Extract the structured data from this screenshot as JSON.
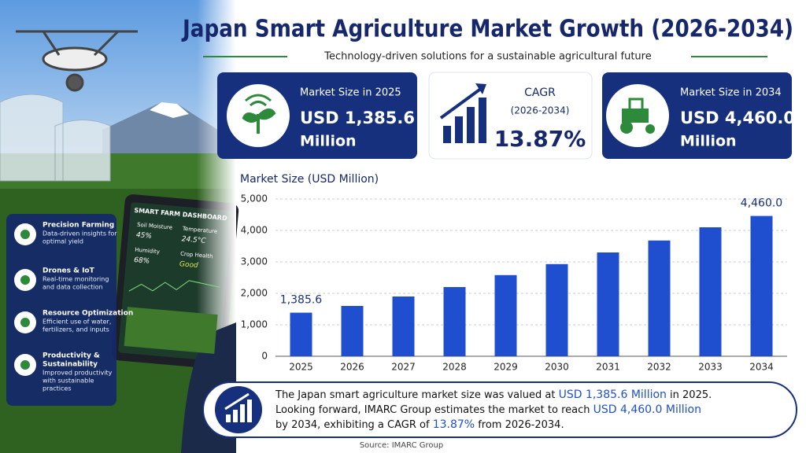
{
  "header": {
    "title": "Japan Smart Agriculture Market Growth (2026-2034)",
    "subtitle": "Technology-driven solutions for a sustainable agricultural future"
  },
  "cards": [
    {
      "label": "Market Size in 2025",
      "value": "USD 1,385.6",
      "unit": "Million"
    },
    {
      "label": "CAGR",
      "period": "(2026-2034)",
      "value": "13.87%"
    },
    {
      "label": "Market Size in 2034",
      "value": "USD 4,460.0",
      "unit": "Million"
    }
  ],
  "tablet": {
    "title": "SMART FARM DASHBOARD",
    "metrics": [
      {
        "label": "Soil Moisture",
        "value": "45%"
      },
      {
        "label": "Temperature",
        "value": "24.5°C"
      },
      {
        "label": "Humidity",
        "value": "68%"
      },
      {
        "label": "Crop Health",
        "value": "Good"
      }
    ]
  },
  "features": [
    {
      "title": [
        "Precision Farming"
      ],
      "desc": [
        "Data-driven insights for",
        "optimal yield"
      ]
    },
    {
      "title": [
        "Drones & IoT"
      ],
      "desc": [
        "Real-time monitoring",
        "and data collection"
      ]
    },
    {
      "title": [
        "Resource Optimization"
      ],
      "desc": [
        "Efficient use of water,",
        "fertilizers, and inputs"
      ]
    },
    {
      "title": [
        "Productivity &",
        "Sustainability"
      ],
      "desc": [
        "Improved productivity",
        "with sustainable",
        "practices"
      ]
    }
  ],
  "chart_data": {
    "type": "bar",
    "title": "Market Size (USD Million)",
    "categories": [
      "2025",
      "2026",
      "2027",
      "2028",
      "2029",
      "2030",
      "2031",
      "2032",
      "2033",
      "2034"
    ],
    "values": [
      1385.6,
      1600,
      1900,
      2200,
      2580,
      2930,
      3300,
      3680,
      4100,
      4460.0
    ],
    "value_labels": [
      "1,385.6",
      null,
      null,
      null,
      null,
      null,
      null,
      null,
      null,
      "4,460.0"
    ],
    "color": "#1f4fcf",
    "ylim": [
      0,
      5000
    ],
    "yticks": [
      0,
      {
        "value": 1000,
        "label": "1,000"
      },
      {
        "value": 2000,
        "label": "2,000"
      },
      {
        "value": 3000,
        "label": "3,000"
      },
      {
        "value": 4000,
        "label": "4,000"
      },
      {
        "value": 5000,
        "label": "5,000"
      }
    ],
    "grid": true
  },
  "summary": {
    "lines": [
      [
        {
          "text": "The Japan smart agriculture market size was valued at "
        },
        {
          "text": "USD 1,385.6 Million",
          "highlight": true
        },
        {
          "text": " in 2025."
        }
      ],
      [
        {
          "text": "Looking forward, IMARC Group estimates the market to reach "
        },
        {
          "text": "USD 4,460.0 Million",
          "highlight": true
        }
      ],
      [
        {
          "text": "by 2034, exhibiting a CAGR of "
        },
        {
          "text": "13.87%",
          "highlight": true
        },
        {
          "text": " from 2026-2034."
        }
      ]
    ]
  },
  "source": "Source: IMARC Group"
}
